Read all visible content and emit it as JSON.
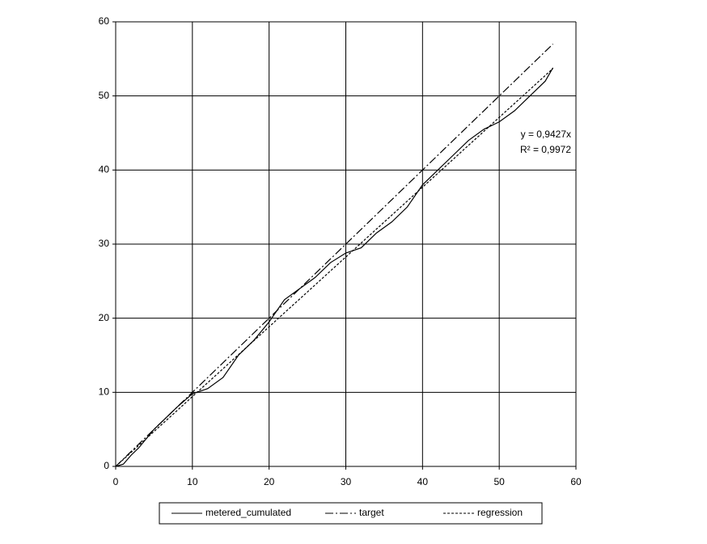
{
  "chart_data": {
    "type": "line",
    "xlim": [
      0,
      60
    ],
    "xticks": [
      0,
      10,
      20,
      30,
      40,
      50,
      60
    ],
    "ylim": [
      0,
      60
    ],
    "yticks": [
      0,
      10,
      20,
      30,
      40,
      50,
      60
    ],
    "grid": true,
    "legend": "bottom",
    "series": [
      {
        "name": "metered_cumulated",
        "color": "#000000",
        "style": "solid",
        "x": [
          0,
          1,
          2,
          3,
          5,
          8,
          10,
          12,
          14,
          16,
          18,
          20,
          22,
          24,
          26,
          28,
          30,
          32,
          34,
          36,
          38,
          40,
          42,
          44,
          46,
          48,
          50,
          52,
          54,
          56,
          57
        ],
        "values": [
          0,
          0.3,
          1.5,
          2.5,
          5,
          8,
          9.8,
          10.5,
          12,
          15,
          17,
          19.5,
          22.5,
          24,
          25.5,
          27.5,
          28.8,
          29.5,
          31.5,
          33,
          35,
          38,
          40,
          42,
          44,
          45.5,
          46.5,
          48,
          50,
          52,
          53.8
        ]
      },
      {
        "name": "target",
        "color": "#000000",
        "style": "dashdot",
        "x": [
          0,
          57
        ],
        "values": [
          0,
          57
        ]
      },
      {
        "name": "regression",
        "color": "#000000",
        "style": "dotted",
        "x": [
          0,
          57
        ],
        "values": [
          0,
          53.7
        ]
      }
    ],
    "annotations": [
      "y = 0,9427x",
      "R² = 0,9972"
    ]
  }
}
